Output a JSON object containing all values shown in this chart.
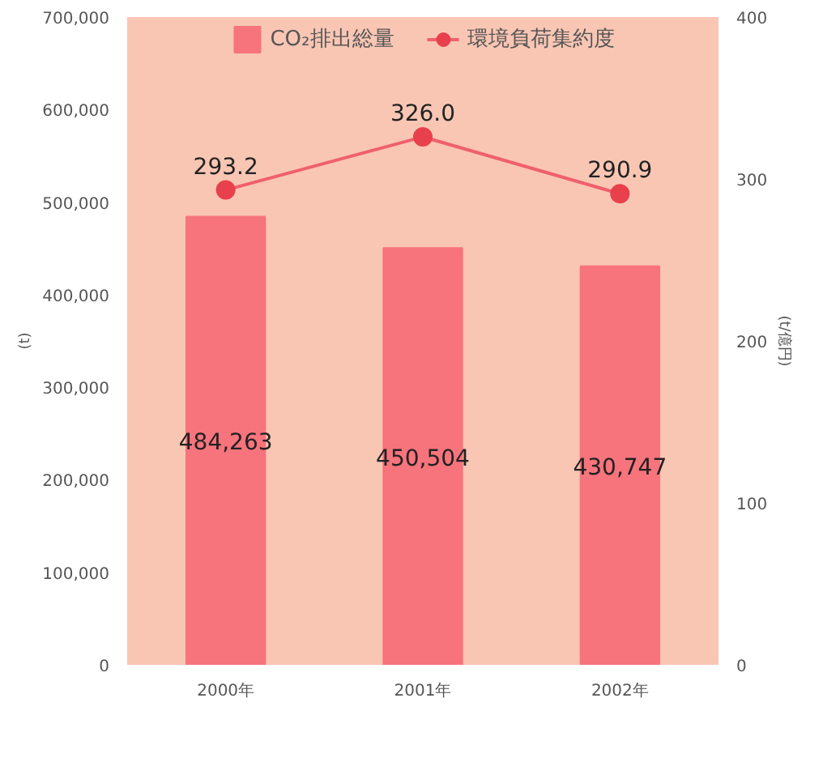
{
  "chart_data": {
    "type": "bar",
    "categories": [
      "2000年",
      "2001年",
      "2002年"
    ],
    "ylabel": "(t)",
    "y2label": "(t/億円)",
    "ylim": [
      0,
      700000
    ],
    "yticks": [
      {
        "value": 0,
        "label": "0"
      },
      {
        "value": 100000,
        "label": "100,000"
      },
      {
        "value": 200000,
        "label": "200,000"
      },
      {
        "value": 300000,
        "label": "300,000"
      },
      {
        "value": 400000,
        "label": "400,000"
      },
      {
        "value": 500000,
        "label": "500,000"
      },
      {
        "value": 600000,
        "label": "600,000"
      },
      {
        "value": 700000,
        "label": "700,000"
      }
    ],
    "y2lim": [
      0,
      400
    ],
    "y2ticks": [
      0,
      100,
      200,
      300,
      400
    ],
    "series": [
      {
        "name": "CO₂排出総量",
        "color": "#f7747c",
        "values": [
          484263,
          450504,
          430747
        ],
        "value_labels": [
          "484,263",
          "450,504",
          "430,747"
        ]
      },
      {
        "name": "環境負荷集約度",
        "type": "line",
        "axis": "y2",
        "color": "#f0606c",
        "values": [
          293.2,
          326.0,
          290.9
        ],
        "value_labels": [
          "293.2",
          "326.0",
          "290.9"
        ]
      }
    ],
    "marker": "circle",
    "legend": "top",
    "grid": false
  }
}
